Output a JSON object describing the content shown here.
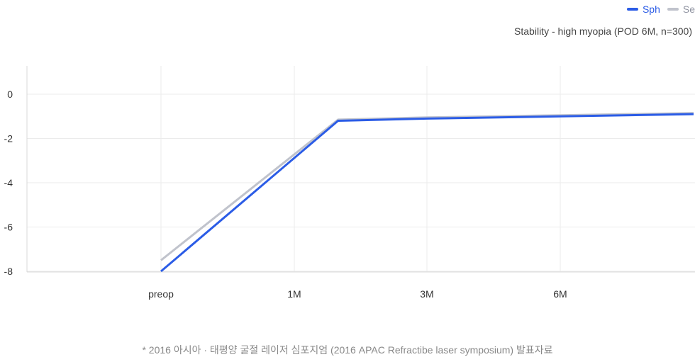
{
  "chart_data": {
    "type": "line",
    "title": "Stability - high myopia (POD 6M, n=300)",
    "categories": [
      "preop",
      "1M",
      "3M",
      "6M"
    ],
    "x_continuous": [
      0,
      1.33,
      2,
      3,
      4
    ],
    "series": [
      {
        "name": "Sph",
        "color": "#2b5ce6",
        "points": [
          [
            0,
            -8.0
          ],
          [
            1.33,
            -1.2
          ],
          [
            2,
            -1.1
          ],
          [
            3,
            -1.0
          ],
          [
            4,
            -0.9
          ]
        ]
      },
      {
        "name": "Se",
        "color": "#c0c3cc",
        "points": [
          [
            0,
            -7.5
          ],
          [
            1.33,
            -1.15
          ],
          [
            2,
            -1.05
          ],
          [
            3,
            -0.95
          ],
          [
            4,
            -0.85
          ]
        ]
      }
    ],
    "y_ticks": [
      "0",
      "-2",
      "-4",
      "-6",
      "-8"
    ],
    "ylim": [
      -8,
      0
    ],
    "grid": true,
    "legend_position": "top-right"
  },
  "footnote": "* 2016 아시아 · 태평양 굴절 레이저 심포지엄 (2016 APAC Refractibe laser symposium) 발표자료"
}
